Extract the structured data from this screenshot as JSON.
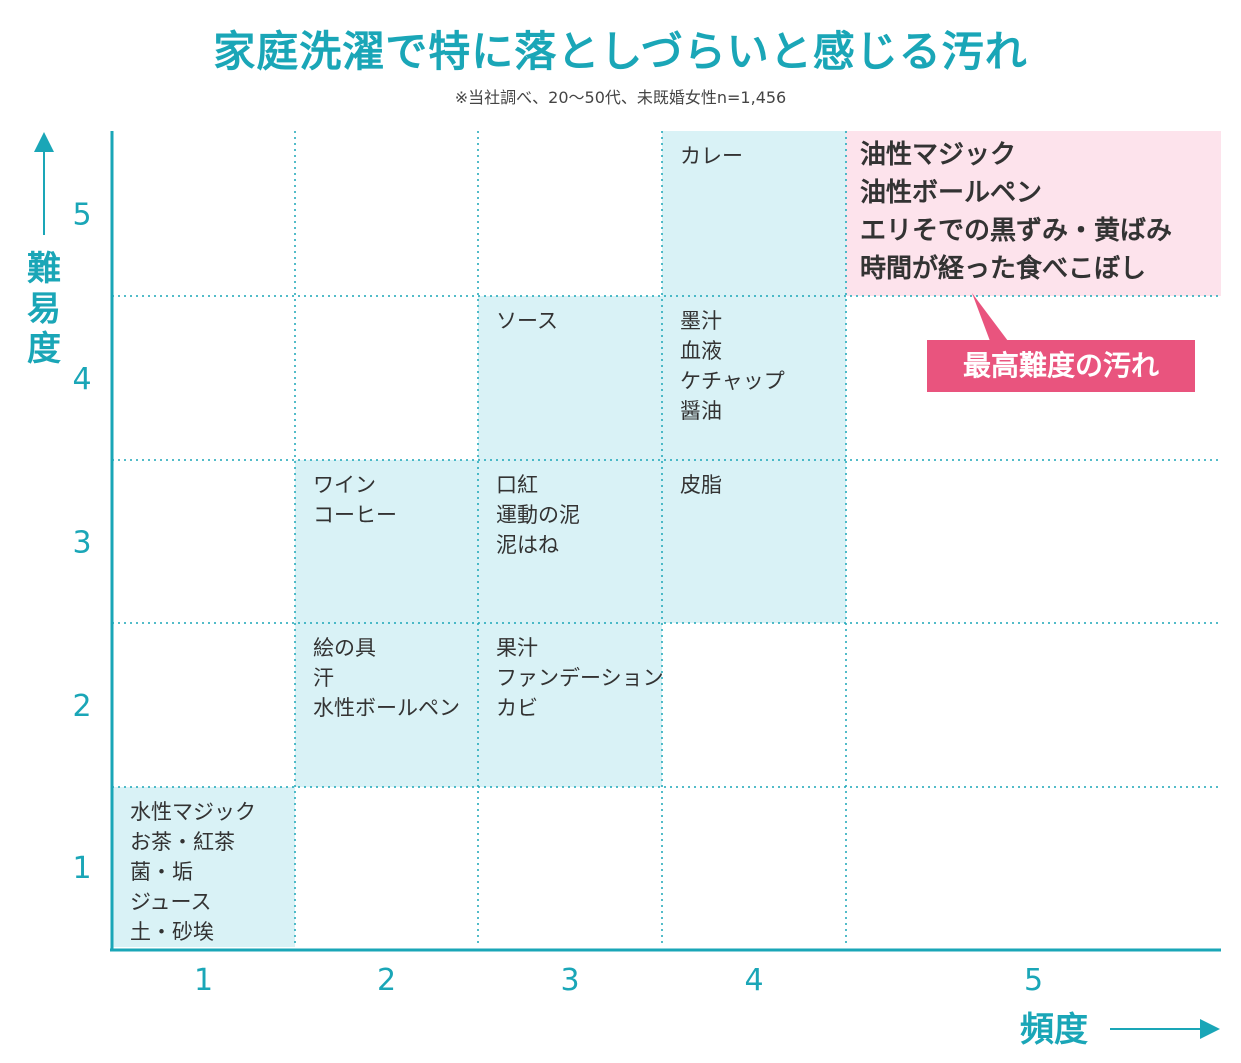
{
  "title": "家庭洗濯で特に落としづらいと感じる汚れ",
  "subtitle": "※当社調べ、20〜50代、未既婚女性n=1,456",
  "callout": "最高難度の汚れ",
  "colors": {
    "accent": "#1aa6b7",
    "cell_fill": "#d9f2f6",
    "highlight_fill": "#fde3ec",
    "callout_bg": "#e9547e"
  },
  "chart_data": {
    "type": "table",
    "xlabel": "頻度",
    "ylabel": "難易度",
    "x_ticks": [
      "1",
      "2",
      "3",
      "4",
      "5"
    ],
    "y_ticks": [
      "1",
      "2",
      "3",
      "4",
      "5"
    ],
    "xlim": [
      1,
      5
    ],
    "ylim": [
      1,
      5
    ],
    "grid": true,
    "cells": [
      {
        "x": 1,
        "y": 1,
        "items": [
          "水性マジック",
          "お茶・紅茶",
          "菌・垢",
          "ジュース",
          "土・砂埃"
        ]
      },
      {
        "x": 2,
        "y": 2,
        "items": [
          "絵の具",
          "汗",
          "水性ボールペン"
        ]
      },
      {
        "x": 3,
        "y": 2,
        "items": [
          "果汁",
          "ファンデーション",
          "カビ"
        ]
      },
      {
        "x": 2,
        "y": 3,
        "items": [
          "ワイン",
          "コーヒー"
        ]
      },
      {
        "x": 3,
        "y": 3,
        "items": [
          "口紅",
          "運動の泥",
          "泥はね"
        ]
      },
      {
        "x": 4,
        "y": 3,
        "items": [
          "皮脂"
        ]
      },
      {
        "x": 3,
        "y": 4,
        "items": [
          "ソース"
        ]
      },
      {
        "x": 4,
        "y": 4,
        "items": [
          "墨汁",
          "血液",
          "ケチャップ",
          "醤油"
        ]
      },
      {
        "x": 4,
        "y": 5,
        "items": [
          "カレー"
        ]
      },
      {
        "x": 5,
        "y": 5,
        "highlight": true,
        "items": [
          "油性マジック",
          "油性ボールペン",
          "エリそでの黒ずみ・黄ばみ",
          "時間が経った食べこぼし"
        ]
      }
    ]
  }
}
